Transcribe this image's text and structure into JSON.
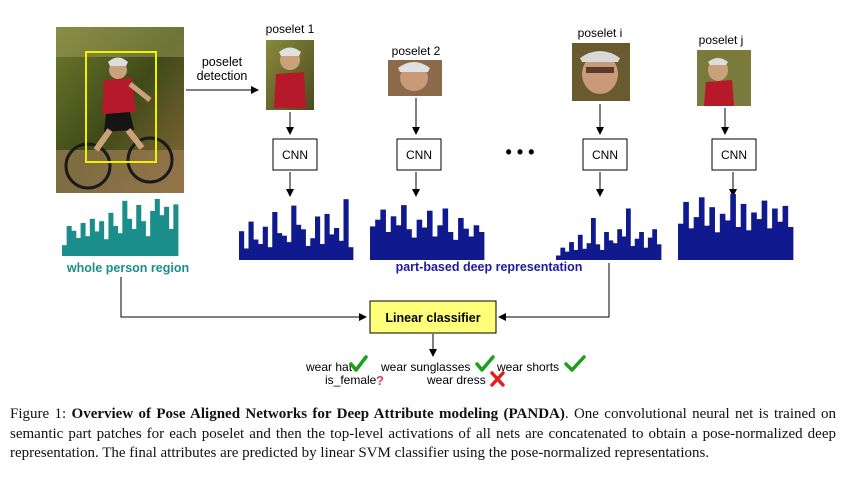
{
  "diagram": {
    "poselet_detection_label": [
      "poselet",
      "detection"
    ],
    "poselets": [
      {
        "label": "poselet 1"
      },
      {
        "label": "poselet 2"
      },
      {
        "label": "poselet i"
      },
      {
        "label": "poselet j"
      }
    ],
    "cnn_label": "CNN",
    "ellipsis": "• • •",
    "whole_person_label": "whole person region",
    "part_based_label": "part-based deep representation",
    "classifier_label": "Linear classifier",
    "attributes": [
      {
        "text": "wear hat",
        "mark": "check"
      },
      {
        "text": "wear sunglasses",
        "mark": "check"
      },
      {
        "text": "wear shorts",
        "mark": "check"
      },
      {
        "text": "is_female",
        "mark": "question"
      },
      {
        "text": "wear dress",
        "mark": "cross"
      }
    ],
    "histograms": {
      "whole": [
        0.18,
        0.5,
        0.42,
        0.3,
        0.55,
        0.33,
        0.62,
        0.41,
        0.58,
        0.28,
        0.72,
        0.5,
        0.38,
        0.92,
        0.62,
        0.45,
        0.85,
        0.58,
        0.33,
        0.75,
        0.95,
        0.68,
        0.82,
        0.45,
        0.86
      ],
      "p1": [
        0.45,
        0.18,
        0.6,
        0.32,
        0.25,
        0.52,
        0.2,
        0.75,
        0.42,
        0.38,
        0.28,
        0.85,
        0.55,
        0.48,
        0.22,
        0.34,
        0.68,
        0.25,
        0.72,
        0.4,
        0.5,
        0.3,
        0.95,
        0.2
      ],
      "p2": [
        0.6,
        0.72,
        0.9,
        0.5,
        0.78,
        0.62,
        0.98,
        0.55,
        0.4,
        0.72,
        0.58,
        0.88,
        0.42,
        0.62,
        0.92,
        0.5,
        0.36,
        0.75,
        0.56,
        0.42,
        0.62,
        0.5
      ],
      "pi": [
        0.08,
        0.22,
        0.15,
        0.32,
        0.18,
        0.45,
        0.2,
        0.3,
        0.75,
        0.28,
        0.18,
        0.5,
        0.35,
        0.3,
        0.55,
        0.42,
        0.92,
        0.25,
        0.38,
        0.5,
        0.22,
        0.4,
        0.55,
        0.28
      ],
      "pj": [
        0.55,
        0.88,
        0.48,
        0.65,
        0.95,
        0.52,
        0.8,
        0.42,
        0.7,
        0.6,
        1.0,
        0.5,
        0.85,
        0.45,
        0.72,
        0.62,
        0.9,
        0.48,
        0.78,
        0.58,
        0.82,
        0.5
      ]
    },
    "colors": {
      "histogram_whole": "#1b8e8b",
      "histogram_parts": "#101a8e",
      "whole_label": "#1b8e8b",
      "part_label": "#1a1aa6",
      "classifier_fill": "#ffff7a",
      "check": "#1aa01a",
      "cross": "#e02020",
      "question": "#e23a78"
    }
  },
  "caption": {
    "prefix": "Figure 1: ",
    "title": "Overview of Pose Aligned Networks for Deep Attribute modeling (PANDA)",
    "body": ". One convolutional neural net is trained on semantic part patches for each poselet and then the top-level activations of all nets are concatenated to obtain a pose-normalized deep representation. The final attributes are predicted by linear SVM classifier using the pose-normalized representations."
  }
}
